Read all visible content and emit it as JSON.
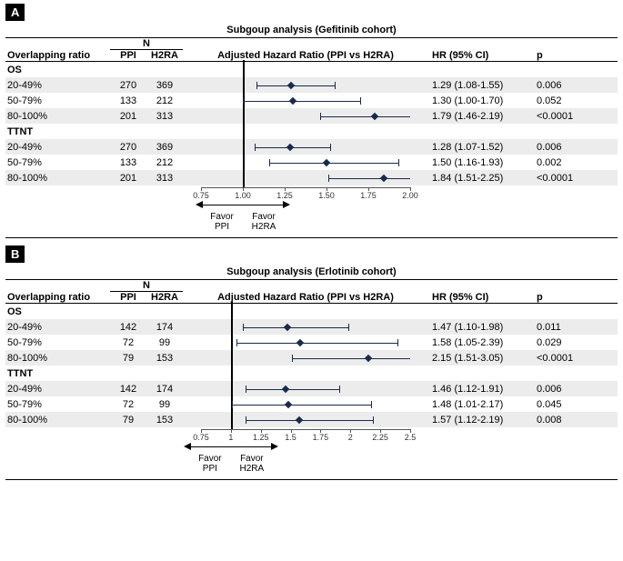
{
  "panels": [
    {
      "badge": "A",
      "title": "Subgoup analysis (Gefitinib cohort)",
      "header": {
        "ratio": "Overlapping ratio",
        "n": "N",
        "n1": "PPI",
        "n2": "H2RA",
        "plot": "Adjusted Hazard Ratio (PPI vs H2RA)",
        "hr": "HR (95% CI)",
        "p": "p"
      },
      "axis": {
        "min": 0.75,
        "max": 2.0,
        "ref": 1.0,
        "ticks": [
          0.75,
          1.0,
          1.25,
          1.5,
          1.75,
          2.0
        ],
        "tick_labels": [
          "0.75",
          "1.00",
          "1.25",
          "1.50",
          "1.75",
          "2.00"
        ]
      },
      "favor_left": "Favor\nPPI",
      "favor_right": "Favor\nH2RA",
      "sections": [
        {
          "name": "OS",
          "rows": [
            {
              "ratio": "20-49%",
              "n1": 270,
              "n2": 369,
              "point": 1.29,
              "low": 1.08,
              "high": 1.55,
              "hr": "1.29 (1.08-1.55)",
              "p": "0.006"
            },
            {
              "ratio": "50-79%",
              "n1": 133,
              "n2": 212,
              "point": 1.3,
              "low": 1.0,
              "high": 1.7,
              "hr": "1.30 (1.00-1.70)",
              "p": "0.052"
            },
            {
              "ratio": "80-100%",
              "n1": 201,
              "n2": 313,
              "point": 1.79,
              "low": 1.46,
              "high": 2.19,
              "hr": "1.79 (1.46-2.19)",
              "p": "<0.0001"
            }
          ]
        },
        {
          "name": "TTNT",
          "rows": [
            {
              "ratio": "20-49%",
              "n1": 270,
              "n2": 369,
              "point": 1.28,
              "low": 1.07,
              "high": 1.52,
              "hr": "1.28 (1.07-1.52)",
              "p": "0.006"
            },
            {
              "ratio": "50-79%",
              "n1": 133,
              "n2": 212,
              "point": 1.5,
              "low": 1.16,
              "high": 1.93,
              "hr": "1.50 (1.16-1.93)",
              "p": "0.002"
            },
            {
              "ratio": "80-100%",
              "n1": 201,
              "n2": 313,
              "point": 1.84,
              "low": 1.51,
              "high": 2.25,
              "hr": "1.84 (1.51-2.25)",
              "p": "<0.0001"
            }
          ]
        }
      ],
      "marker_size": 6,
      "cap_at_axis": true
    },
    {
      "badge": "B",
      "title": "Subgoup analysis (Erlotinib cohort)",
      "header": {
        "ratio": "Overlapping ratio",
        "n": "N",
        "n1": "PPI",
        "n2": "H2RA",
        "plot": "Adjusted Hazard Ratio (PPI vs H2RA)",
        "hr": "HR (95% CI)",
        "p": "p"
      },
      "axis": {
        "min": 0.75,
        "max": 2.5,
        "ref": 1.0,
        "ticks": [
          0.75,
          1,
          1.25,
          1.5,
          1.75,
          2,
          2.25,
          2.5
        ],
        "tick_labels": [
          "0.75",
          "1",
          "1.25",
          "1.5",
          "1.75",
          "2",
          "2.25",
          "2.5"
        ]
      },
      "favor_left": "Favor\nPPI",
      "favor_right": "Favor\nH2RA",
      "sections": [
        {
          "name": "OS",
          "rows": [
            {
              "ratio": "20-49%",
              "n1": 142,
              "n2": 174,
              "point": 1.47,
              "low": 1.1,
              "high": 1.98,
              "hr": "1.47 (1.10-1.98)",
              "p": "0.011"
            },
            {
              "ratio": "50-79%",
              "n1": 72,
              "n2": 99,
              "point": 1.58,
              "low": 1.05,
              "high": 2.39,
              "hr": "1.58 (1.05-2.39)",
              "p": "0.029"
            },
            {
              "ratio": "80-100%",
              "n1": 79,
              "n2": 153,
              "point": 2.15,
              "low": 1.51,
              "high": 3.05,
              "hr": "2.15 (1.51-3.05)",
              "p": "<0.0001"
            }
          ]
        },
        {
          "name": "TTNT",
          "rows": [
            {
              "ratio": "20-49%",
              "n1": 142,
              "n2": 174,
              "point": 1.46,
              "low": 1.12,
              "high": 1.91,
              "hr": "1.46 (1.12-1.91)",
              "p": "0.006"
            },
            {
              "ratio": "50-79%",
              "n1": 72,
              "n2": 99,
              "point": 1.48,
              "low": 1.01,
              "high": 2.17,
              "hr": "1.48 (1.01-2.17)",
              "p": "0.045"
            },
            {
              "ratio": "80-100%",
              "n1": 79,
              "n2": 153,
              "point": 1.57,
              "low": 1.12,
              "high": 2.19,
              "hr": "1.57 (1.12-2.19)",
              "p": "0.008"
            }
          ]
        }
      ],
      "marker_size": 6,
      "cap_at_axis": true
    }
  ],
  "colors": {
    "marker": "#1a2a4a",
    "line": "#1a2a4a",
    "alt_row": "#ececec"
  }
}
